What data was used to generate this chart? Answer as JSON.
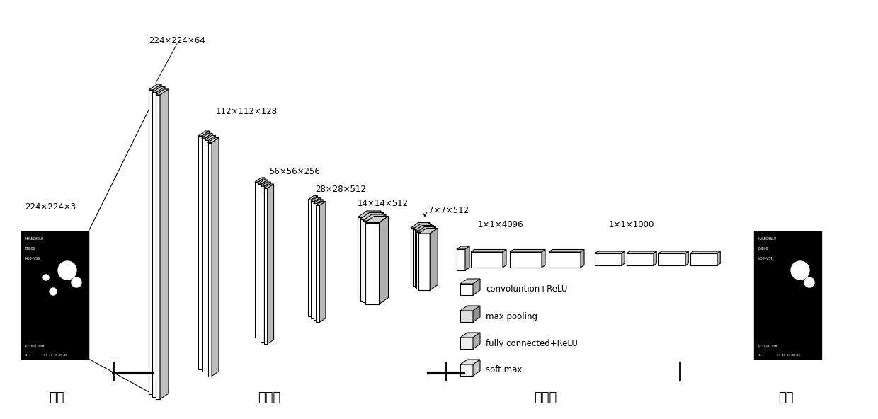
{
  "bg_color": "#ffffff",
  "labels": {
    "input": "输入",
    "conv": "卷积层",
    "fc": "全连接",
    "output": "输出",
    "dim_input": "224×224×3",
    "dim_conv1": "224×224×64",
    "dim_conv2": "112×112×128",
    "dim_conv3": "56×56×256",
    "dim_conv4": "28×28×512",
    "dim_conv5": "14×14×512",
    "dim_conv6": "7×7×512",
    "dim_fc1": "1×1×4096",
    "dim_fc2": "1×1×1000"
  },
  "legend_items": [
    "convoluntion+ReLU",
    "max pooling",
    "fully connected+ReLU",
    "soft max"
  ],
  "fig_w": 12.4,
  "fig_h": 5.92,
  "dpi": 100
}
